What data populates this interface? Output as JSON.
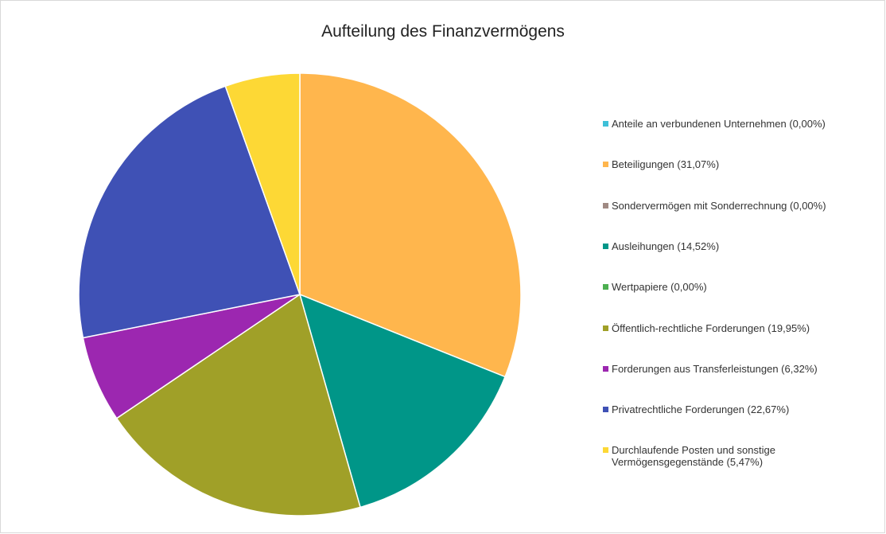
{
  "chart_data": {
    "type": "pie",
    "title": "Aufteilung des Finanzvermögens",
    "categories": [
      "Anteile an verbundenen Unternehmen (0,00%)",
      "Beteiligungen (31,07%)",
      "Sondervermögen mit Sonderrechnung (0,00%)",
      "Ausleihungen (14,52%)",
      "Wertpapiere (0,00%)",
      "Öffentlich-rechtliche Forderungen (19,95%)",
      "Forderungen aus Transferleistungen (6,32%)",
      "Privatrechtliche Forderungen (22,67%)",
      "Durchlaufende Posten und sonstige Vermögensgegenstände (5,47%)"
    ],
    "values": [
      0,
      31.07,
      0,
      14.52,
      0,
      19.95,
      6.32,
      22.67,
      5.47
    ],
    "colors": [
      "#3ec0d8",
      "#ffb64d",
      "#a08a83",
      "#009688",
      "#4caf50",
      "#a0a028",
      "#9c27b0",
      "#3f51b5",
      "#fdd835"
    ],
    "legend": "right"
  }
}
